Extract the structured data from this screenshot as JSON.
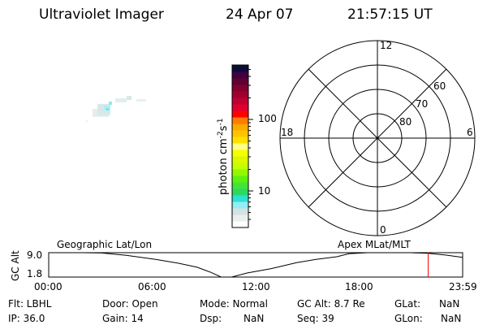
{
  "header": {
    "instrument": "Ultraviolet Imager",
    "date": "24 Apr 07",
    "time": "21:57:15 UT"
  },
  "colorbar": {
    "label": "photon cm",
    "label_sup1": "-2",
    "label_mid": "s",
    "label_sup2": "-1",
    "scale": "log",
    "ticks": [
      "10",
      "100"
    ],
    "colors": [
      "#ffffff",
      "#e8f0ec",
      "#d4e2e2",
      "#94ecf4",
      "#2ce0d4",
      "#2cd864",
      "#44e434",
      "#60f010",
      "#90f800",
      "#c4ff00",
      "#dcf800",
      "#f4ff00",
      "#ffff80",
      "#ffe000",
      "#ffc400",
      "#ffa800",
      "#ff7c00",
      "#ff0000",
      "#e00030",
      "#c00030",
      "#a00030",
      "#800030",
      "#600030",
      "#400040",
      "#0c0c3c"
    ]
  },
  "polar": {
    "mlt_labels": [
      "12",
      "6",
      "0",
      "18"
    ],
    "lat_rings": [
      "60",
      "70",
      "80"
    ]
  },
  "altplot": {
    "left_label": "Geographic Lat/Lon",
    "right_label": "Apex MLat/MLT",
    "ylabel": "GC Alt",
    "yticks": [
      "9.0",
      "1.8"
    ],
    "xticks": [
      "00:00",
      "06:00",
      "12:00",
      "18:00",
      "23:59"
    ]
  },
  "chart_data": {
    "type": "line",
    "xlabel": "",
    "ylabel": "GC Alt",
    "ylim": [
      1.8,
      9.0
    ],
    "xlim": [
      0,
      24
    ],
    "x": [
      0,
      1,
      2,
      3.1,
      4.5,
      6.2,
      7.5,
      8.6,
      9.4,
      10.0,
      10.6,
      11.5,
      12.9,
      14.4,
      15.5,
      16.7,
      17.4,
      18.5,
      20,
      21,
      22,
      23,
      24
    ],
    "y": [
      9.0,
      9.0,
      9.0,
      8.9,
      8.2,
      7.0,
      5.9,
      4.7,
      3.2,
      1.8,
      1.8,
      3.0,
      4.3,
      6.1,
      7.0,
      7.8,
      8.7,
      9.0,
      9.0,
      9.0,
      8.8,
      8.3,
      7.6
    ],
    "current_time_marker": 22.0,
    "marker_color": "#ff0000"
  },
  "status": {
    "flt": "Flt: LBHL",
    "ip": "IP: 36.0",
    "door": "Door: Open",
    "gain": "Gain: 14",
    "mode": "Mode: Normal",
    "dsp_label": "Dsp:",
    "dsp_value": "NaN",
    "gcalt": "GC Alt: 8.7 Re",
    "seq": "Seq: 39",
    "glat_label": "GLat:",
    "glat_value": "NaN",
    "glon_label": "GLon:",
    "glon_value": "NaN"
  }
}
